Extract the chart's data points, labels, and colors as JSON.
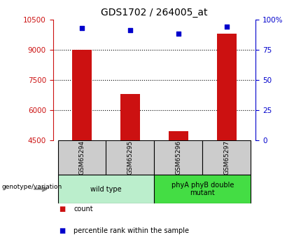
{
  "title": "GDS1702 / 264005_at",
  "samples": [
    "GSM65294",
    "GSM65295",
    "GSM65296",
    "GSM65297"
  ],
  "bar_values": [
    9000,
    6800,
    4950,
    9800
  ],
  "bar_baseline": 4500,
  "bar_color": "#cc1111",
  "percentile_values": [
    93,
    91,
    88,
    94
  ],
  "percentile_color": "#0000cc",
  "left_ylim": [
    4500,
    10500
  ],
  "left_yticks": [
    4500,
    6000,
    7500,
    9000,
    10500
  ],
  "right_ylim": [
    0,
    100
  ],
  "right_yticks": [
    0,
    25,
    50,
    75,
    100
  ],
  "right_yticklabels": [
    "0",
    "25",
    "50",
    "75",
    "100%"
  ],
  "groups": [
    {
      "label": "wild type",
      "indices": [
        0,
        1
      ],
      "color": "#bbeecc"
    },
    {
      "label": "phyA phyB double\nmutant",
      "indices": [
        2,
        3
      ],
      "color": "#44dd44"
    }
  ],
  "genotype_label": "genotype/variation",
  "legend_bar_label": "count",
  "legend_scatter_label": "percentile rank within the sample",
  "cell_gray": "#cccccc",
  "figsize": [
    4.2,
    3.45
  ],
  "dpi": 100
}
